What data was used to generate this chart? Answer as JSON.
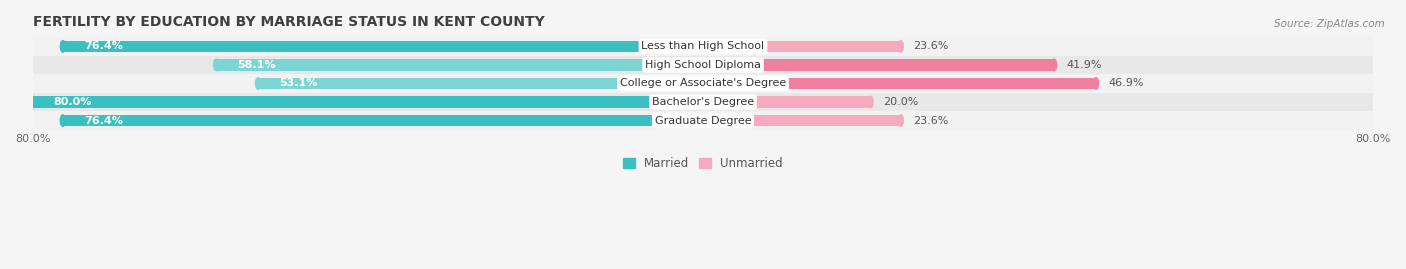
{
  "title": "FERTILITY BY EDUCATION BY MARRIAGE STATUS IN KENT COUNTY",
  "source": "Source: ZipAtlas.com",
  "categories": [
    "Less than High School",
    "High School Diploma",
    "College or Associate's Degree",
    "Bachelor's Degree",
    "Graduate Degree"
  ],
  "married_values": [
    76.4,
    58.1,
    53.1,
    80.0,
    76.4
  ],
  "unmarried_values": [
    23.6,
    41.9,
    46.9,
    20.0,
    23.6
  ],
  "married_colors": [
    "#3BBFC0",
    "#7DD4D4",
    "#7DD4D4",
    "#3BBFC0",
    "#3BBFC0"
  ],
  "unmarried_colors": [
    "#F5AABF",
    "#F080A0",
    "#F080A0",
    "#F5AABF",
    "#F5AABF"
  ],
  "row_colors": [
    "#f2f2f2",
    "#e8e8e8",
    "#f2f2f2",
    "#e8e8e8",
    "#f2f2f2"
  ],
  "title_fontsize": 10,
  "label_fontsize": 8,
  "value_fontsize": 8,
  "axis_label_fontsize": 8,
  "legend_fontsize": 8.5,
  "bar_height": 0.62,
  "xlim_left": -80.0,
  "xlim_right": 80.0
}
